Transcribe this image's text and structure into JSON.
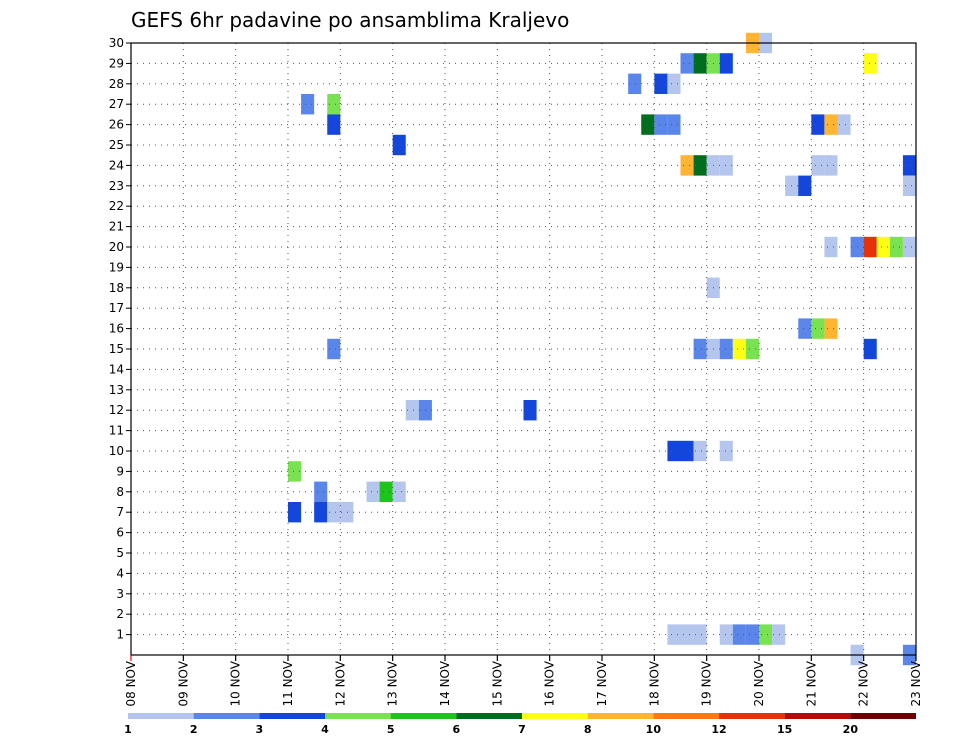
{
  "chart_data": {
    "type": "heatmap",
    "title": "GEFS 6hr padavine po ansamblima Kraljevo",
    "xlabel": "",
    "ylabel": "",
    "x_ticks": [
      "08 NOV",
      "09 NOV",
      "10 NOV",
      "11 NOV",
      "12 NOV",
      "13 NOV",
      "14 NOV",
      "15 NOV",
      "16 NOV",
      "17 NOV",
      "18 NOV",
      "19 NOV",
      "20 NOV",
      "21 NOV",
      "22 NOV",
      "23 NOV"
    ],
    "y_ticks": [
      "1",
      "2",
      "3",
      "4",
      "5",
      "6",
      "7",
      "8",
      "9",
      "10",
      "11",
      "12",
      "13",
      "14",
      "15",
      "16",
      "17",
      "18",
      "19",
      "20",
      "21",
      "22",
      "23",
      "24",
      "25",
      "26",
      "27",
      "28",
      "29",
      "30"
    ],
    "x_unit": "6-hour step (0 = 08 NOV 00z)",
    "xlim": [
      0,
      60
    ],
    "ylim": [
      0,
      30
    ],
    "grid": true,
    "legend": "bottom colorbar",
    "colorbar": {
      "labels": [
        "1",
        "2",
        "3",
        "4",
        "5",
        "6",
        "7",
        "8",
        "10",
        "12",
        "15",
        "20"
      ],
      "colors": [
        "#b4c5ee",
        "#5a86ea",
        "#1446dc",
        "#78e250",
        "#1ec31c",
        "#006e1e",
        "#ffff14",
        "#ffb432",
        "#ff7814",
        "#e6320a",
        "#b40a0a",
        "#6e0000"
      ]
    },
    "cells": [
      {
        "x": 47,
        "y": 30,
        "level": 8
      },
      {
        "x": 48,
        "y": 30,
        "level": 1
      },
      {
        "x": 42,
        "y": 29,
        "level": 2
      },
      {
        "x": 43,
        "y": 29,
        "level": 6
      },
      {
        "x": 44,
        "y": 29,
        "level": 4
      },
      {
        "x": 45,
        "y": 29,
        "level": 3
      },
      {
        "x": 56,
        "y": 29,
        "level": 7
      },
      {
        "x": 38,
        "y": 28,
        "level": 2
      },
      {
        "x": 40,
        "y": 28,
        "level": 3
      },
      {
        "x": 41,
        "y": 28,
        "level": 1
      },
      {
        "x": 13,
        "y": 27,
        "level": 2
      },
      {
        "x": 15,
        "y": 27,
        "level": 4
      },
      {
        "x": 15,
        "y": 26,
        "level": 3
      },
      {
        "x": 39,
        "y": 26,
        "level": 6
      },
      {
        "x": 40,
        "y": 26,
        "level": 2
      },
      {
        "x": 41,
        "y": 26,
        "level": 2
      },
      {
        "x": 52,
        "y": 26,
        "level": 3
      },
      {
        "x": 53,
        "y": 26,
        "level": 8
      },
      {
        "x": 54,
        "y": 26,
        "level": 1
      },
      {
        "x": 20,
        "y": 25,
        "level": 3
      },
      {
        "x": 42,
        "y": 24,
        "level": 8
      },
      {
        "x": 43,
        "y": 24,
        "level": 6
      },
      {
        "x": 44,
        "y": 24,
        "level": 1
      },
      {
        "x": 45,
        "y": 24,
        "level": 1
      },
      {
        "x": 52,
        "y": 24,
        "level": 1
      },
      {
        "x": 53,
        "y": 24,
        "level": 1
      },
      {
        "x": 59,
        "y": 24,
        "level": 3
      },
      {
        "x": 50,
        "y": 23,
        "level": 1
      },
      {
        "x": 51,
        "y": 23,
        "level": 3
      },
      {
        "x": 59,
        "y": 23,
        "level": 1
      },
      {
        "x": 53,
        "y": 20,
        "level": 1
      },
      {
        "x": 55,
        "y": 20,
        "level": 2
      },
      {
        "x": 56,
        "y": 20,
        "level": 10
      },
      {
        "x": 57,
        "y": 20,
        "level": 7
      },
      {
        "x": 58,
        "y": 20,
        "level": 4
      },
      {
        "x": 59,
        "y": 20,
        "level": 1
      },
      {
        "x": 44,
        "y": 18,
        "level": 1
      },
      {
        "x": 51,
        "y": 16,
        "level": 2
      },
      {
        "x": 52,
        "y": 16,
        "level": 4
      },
      {
        "x": 53,
        "y": 16,
        "level": 8
      },
      {
        "x": 15,
        "y": 15,
        "level": 2
      },
      {
        "x": 43,
        "y": 15,
        "level": 2
      },
      {
        "x": 44,
        "y": 15,
        "level": 1
      },
      {
        "x": 45,
        "y": 15,
        "level": 2
      },
      {
        "x": 46,
        "y": 15,
        "level": 7
      },
      {
        "x": 47,
        "y": 15,
        "level": 4
      },
      {
        "x": 56,
        "y": 15,
        "level": 3
      },
      {
        "x": 21,
        "y": 12,
        "level": 1
      },
      {
        "x": 22,
        "y": 12,
        "level": 2
      },
      {
        "x": 30,
        "y": 12,
        "level": 3
      },
      {
        "x": 41,
        "y": 10,
        "level": 3
      },
      {
        "x": 42,
        "y": 10,
        "level": 3
      },
      {
        "x": 43,
        "y": 10,
        "level": 1
      },
      {
        "x": 45,
        "y": 10,
        "level": 1
      },
      {
        "x": 12,
        "y": 9,
        "level": 4
      },
      {
        "x": 14,
        "y": 8,
        "level": 2
      },
      {
        "x": 18,
        "y": 8,
        "level": 1
      },
      {
        "x": 19,
        "y": 8,
        "level": 5
      },
      {
        "x": 20,
        "y": 8,
        "level": 1
      },
      {
        "x": 12,
        "y": 7,
        "level": 3
      },
      {
        "x": 14,
        "y": 7,
        "level": 3
      },
      {
        "x": 15,
        "y": 7,
        "level": 1
      },
      {
        "x": 16,
        "y": 7,
        "level": 1
      },
      {
        "x": 41,
        "y": 1,
        "level": 1
      },
      {
        "x": 42,
        "y": 1,
        "level": 1
      },
      {
        "x": 43,
        "y": 1,
        "level": 1
      },
      {
        "x": 45,
        "y": 1,
        "level": 1
      },
      {
        "x": 46,
        "y": 1,
        "level": 2
      },
      {
        "x": 47,
        "y": 1,
        "level": 2
      },
      {
        "x": 48,
        "y": 1,
        "level": 4
      },
      {
        "x": 49,
        "y": 1,
        "level": 1
      },
      {
        "x": 55,
        "y": 0,
        "level": 1
      },
      {
        "x": 59,
        "y": 0,
        "level": 2
      }
    ]
  }
}
